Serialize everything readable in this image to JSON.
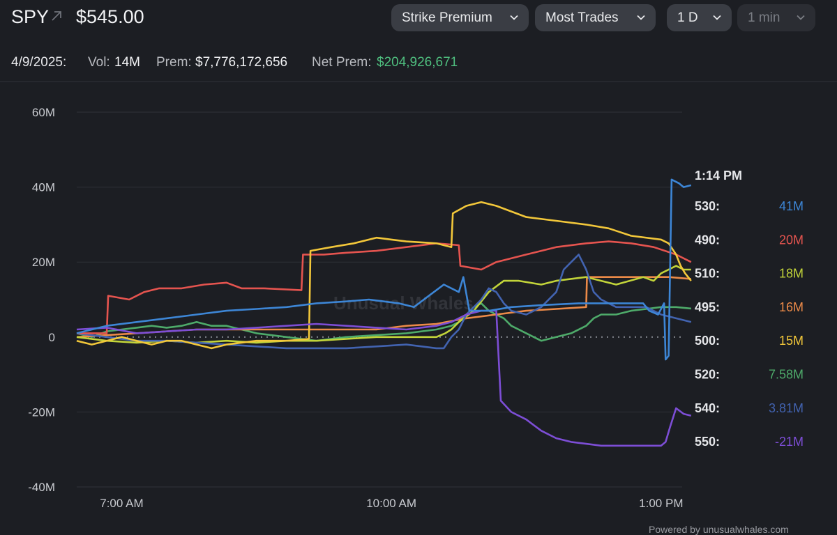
{
  "header": {
    "ticker": "SPY",
    "price": "$545.00",
    "controls": [
      {
        "label": "Strike Premium",
        "enabled": true
      },
      {
        "label": "Most Trades",
        "enabled": true
      },
      {
        "label": "1 D",
        "enabled": true
      },
      {
        "label": "1 min",
        "enabled": false
      }
    ]
  },
  "stats": {
    "date": "4/9/2025:",
    "vol_label": "Vol:",
    "vol_value": "14M",
    "prem_label": "Prem:",
    "prem_value": "$7,776,172,656",
    "net_prem_label": "Net Prem:",
    "net_prem_value": "$204,926,671",
    "net_prem_color": "#4fbf7f"
  },
  "watermark": "Unusual Whales",
  "powered_by": "Powered by unusualwhales.com",
  "chart_data": {
    "type": "line",
    "x_ticks": [
      "7:00 AM",
      "10:00 AM",
      "1:00 PM"
    ],
    "y_ticks": [
      "60M",
      "40M",
      "20M",
      "0",
      "-20M",
      "-40M"
    ],
    "ylim": [
      -40,
      60
    ],
    "y_units": "M",
    "x_range": [
      "6:30 AM",
      "1:14 PM"
    ],
    "zero_line": "dotted",
    "legend_time": "1:14 PM",
    "series": [
      {
        "name": "530",
        "value_label": "41M",
        "color": "#3d86d6",
        "points": [
          [
            0,
            1
          ],
          [
            20,
            3
          ],
          [
            40,
            4
          ],
          [
            60,
            5
          ],
          [
            80,
            6
          ],
          [
            100,
            7
          ],
          [
            120,
            7.5
          ],
          [
            140,
            8
          ],
          [
            160,
            9
          ],
          [
            180,
            9.5
          ],
          [
            195,
            10
          ],
          [
            205,
            9.5
          ],
          [
            215,
            9
          ],
          [
            225,
            8
          ],
          [
            235,
            11
          ],
          [
            245,
            14
          ],
          [
            255,
            12
          ],
          [
            258,
            16
          ],
          [
            262,
            7
          ],
          [
            275,
            7
          ],
          [
            290,
            8
          ],
          [
            310,
            8.5
          ],
          [
            335,
            9
          ],
          [
            360,
            9
          ],
          [
            378,
            9
          ],
          [
            382,
            7
          ],
          [
            388,
            6
          ],
          [
            392,
            9
          ],
          [
            393,
            -6
          ],
          [
            395,
            -5
          ],
          [
            397,
            42
          ],
          [
            402,
            41
          ],
          [
            405,
            40
          ],
          [
            410,
            40.5
          ]
        ]
      },
      {
        "name": "490",
        "value_label": "20M",
        "color": "#e5544f",
        "points": [
          [
            0,
            1
          ],
          [
            10,
            1
          ],
          [
            20,
            1
          ],
          [
            21,
            11
          ],
          [
            35,
            10
          ],
          [
            45,
            12
          ],
          [
            55,
            13
          ],
          [
            70,
            13
          ],
          [
            85,
            14
          ],
          [
            100,
            14.5
          ],
          [
            110,
            13
          ],
          [
            125,
            13
          ],
          [
            150,
            12.5
          ],
          [
            151,
            22
          ],
          [
            165,
            22
          ],
          [
            180,
            22.5
          ],
          [
            200,
            23
          ],
          [
            220,
            24
          ],
          [
            240,
            25
          ],
          [
            255,
            24.5
          ],
          [
            256,
            19
          ],
          [
            270,
            18
          ],
          [
            280,
            20
          ],
          [
            300,
            22
          ],
          [
            320,
            24
          ],
          [
            340,
            25
          ],
          [
            355,
            25.5
          ],
          [
            370,
            25
          ],
          [
            385,
            24
          ],
          [
            400,
            22
          ],
          [
            410,
            20
          ]
        ]
      },
      {
        "name": "510",
        "value_label": "18M",
        "color": "#c2d43a",
        "points": [
          [
            0,
            0
          ],
          [
            20,
            -1
          ],
          [
            40,
            -1.5
          ],
          [
            60,
            -1
          ],
          [
            80,
            -1.5
          ],
          [
            100,
            -1
          ],
          [
            120,
            -1.5
          ],
          [
            140,
            -1
          ],
          [
            160,
            -1
          ],
          [
            180,
            -0.5
          ],
          [
            200,
            0
          ],
          [
            220,
            0
          ],
          [
            240,
            0
          ],
          [
            246,
            1
          ],
          [
            250,
            2
          ],
          [
            255,
            4
          ],
          [
            265,
            7
          ],
          [
            275,
            12
          ],
          [
            285,
            15
          ],
          [
            295,
            15
          ],
          [
            310,
            14
          ],
          [
            320,
            15
          ],
          [
            340,
            16
          ],
          [
            360,
            14
          ],
          [
            378,
            16
          ],
          [
            385,
            15
          ],
          [
            390,
            17
          ],
          [
            395,
            18
          ],
          [
            400,
            19
          ],
          [
            405,
            18
          ],
          [
            410,
            18
          ]
        ]
      },
      {
        "name": "495",
        "value_label": "16M",
        "color": "#ec8a48",
        "points": [
          [
            0,
            0
          ],
          [
            20,
            0.5
          ],
          [
            40,
            1
          ],
          [
            60,
            1.5
          ],
          [
            80,
            2
          ],
          [
            100,
            2
          ],
          [
            120,
            2
          ],
          [
            140,
            2
          ],
          [
            160,
            2
          ],
          [
            180,
            2
          ],
          [
            200,
            2
          ],
          [
            220,
            3
          ],
          [
            240,
            3.5
          ],
          [
            260,
            5
          ],
          [
            280,
            6
          ],
          [
            300,
            7
          ],
          [
            320,
            7.5
          ],
          [
            340,
            8
          ],
          [
            340.5,
            16
          ],
          [
            360,
            16
          ],
          [
            380,
            16
          ],
          [
            395,
            16
          ],
          [
            410,
            15.5
          ]
        ]
      },
      {
        "name": "500",
        "value_label": "15M",
        "color": "#f2c73a",
        "points": [
          [
            0,
            -1
          ],
          [
            10,
            -2
          ],
          [
            20,
            -1
          ],
          [
            30,
            0
          ],
          [
            40,
            -1
          ],
          [
            50,
            -2
          ],
          [
            60,
            -1
          ],
          [
            70,
            -1
          ],
          [
            80,
            -2
          ],
          [
            90,
            -3
          ],
          [
            100,
            -2
          ],
          [
            120,
            -1
          ],
          [
            140,
            -1
          ],
          [
            155,
            -0.5
          ],
          [
            156,
            23
          ],
          [
            170,
            24
          ],
          [
            185,
            25
          ],
          [
            200,
            26.5
          ],
          [
            210,
            26
          ],
          [
            220,
            25.5
          ],
          [
            240,
            25
          ],
          [
            250,
            24
          ],
          [
            251,
            33
          ],
          [
            260,
            35
          ],
          [
            270,
            36
          ],
          [
            280,
            35
          ],
          [
            300,
            32
          ],
          [
            320,
            31
          ],
          [
            340,
            30
          ],
          [
            355,
            29
          ],
          [
            370,
            27
          ],
          [
            390,
            26
          ],
          [
            395,
            25
          ],
          [
            400,
            22
          ],
          [
            403,
            19
          ],
          [
            406,
            17
          ],
          [
            410,
            15
          ]
        ]
      },
      {
        "name": "520",
        "value_label": "7.58M",
        "color": "#4eab6a",
        "points": [
          [
            0,
            1
          ],
          [
            10,
            0
          ],
          [
            20,
            1.5
          ],
          [
            30,
            2
          ],
          [
            40,
            2.5
          ],
          [
            50,
            3
          ],
          [
            60,
            2.5
          ],
          [
            70,
            3
          ],
          [
            80,
            4
          ],
          [
            90,
            3
          ],
          [
            100,
            3
          ],
          [
            110,
            2
          ],
          [
            120,
            1
          ],
          [
            140,
            0
          ],
          [
            160,
            -1
          ],
          [
            180,
            0
          ],
          [
            200,
            0.5
          ],
          [
            220,
            1
          ],
          [
            240,
            2
          ],
          [
            250,
            3
          ],
          [
            255,
            4
          ],
          [
            260,
            6
          ],
          [
            265,
            8
          ],
          [
            270,
            9
          ],
          [
            275,
            7
          ],
          [
            280,
            6
          ],
          [
            285,
            5
          ],
          [
            290,
            3
          ],
          [
            295,
            2
          ],
          [
            300,
            1
          ],
          [
            305,
            0
          ],
          [
            310,
            -1
          ],
          [
            320,
            0
          ],
          [
            330,
            1
          ],
          [
            340,
            3
          ],
          [
            345,
            5
          ],
          [
            350,
            6
          ],
          [
            360,
            6
          ],
          [
            370,
            7
          ],
          [
            380,
            7.5
          ],
          [
            390,
            8
          ],
          [
            400,
            8
          ],
          [
            410,
            7.6
          ]
        ]
      },
      {
        "name": "540",
        "value_label": "3.81M",
        "color": "#4263b0",
        "points": [
          [
            0,
            1
          ],
          [
            20,
            0
          ],
          [
            40,
            -1
          ],
          [
            60,
            -1
          ],
          [
            80,
            -1.5
          ],
          [
            100,
            -2
          ],
          [
            120,
            -2.5
          ],
          [
            140,
            -3
          ],
          [
            160,
            -3
          ],
          [
            180,
            -3
          ],
          [
            200,
            -2.5
          ],
          [
            220,
            -2
          ],
          [
            240,
            -3
          ],
          [
            245,
            -3
          ],
          [
            250,
            0
          ],
          [
            255,
            2
          ],
          [
            260,
            6
          ],
          [
            265,
            8
          ],
          [
            270,
            10
          ],
          [
            275,
            13
          ],
          [
            280,
            12
          ],
          [
            285,
            9
          ],
          [
            290,
            7
          ],
          [
            300,
            6
          ],
          [
            310,
            8
          ],
          [
            320,
            12
          ],
          [
            325,
            18
          ],
          [
            330,
            20
          ],
          [
            335,
            22
          ],
          [
            340,
            18
          ],
          [
            345,
            12
          ],
          [
            350,
            10
          ],
          [
            360,
            8
          ],
          [
            370,
            8
          ],
          [
            380,
            8
          ],
          [
            390,
            6
          ],
          [
            400,
            5
          ],
          [
            410,
            4
          ]
        ]
      },
      {
        "name": "550",
        "value_label": "-21M",
        "color": "#7d4ed6",
        "points": [
          [
            0,
            2
          ],
          [
            20,
            2.5
          ],
          [
            40,
            1
          ],
          [
            60,
            1.5
          ],
          [
            80,
            2
          ],
          [
            100,
            2
          ],
          [
            120,
            2.5
          ],
          [
            140,
            3
          ],
          [
            160,
            3.5
          ],
          [
            180,
            3
          ],
          [
            200,
            2.5
          ],
          [
            220,
            2
          ],
          [
            240,
            3
          ],
          [
            250,
            4
          ],
          [
            260,
            6
          ],
          [
            270,
            7
          ],
          [
            280,
            7
          ],
          [
            283,
            -17
          ],
          [
            290,
            -20
          ],
          [
            300,
            -22
          ],
          [
            310,
            -25
          ],
          [
            320,
            -27
          ],
          [
            330,
            -28
          ],
          [
            340,
            -28.5
          ],
          [
            350,
            -29
          ],
          [
            360,
            -29
          ],
          [
            370,
            -29
          ],
          [
            380,
            -29
          ],
          [
            390,
            -29
          ],
          [
            393,
            -28
          ],
          [
            396,
            -24
          ],
          [
            400,
            -19
          ],
          [
            405,
            -20.5
          ],
          [
            410,
            -21
          ]
        ]
      }
    ]
  }
}
